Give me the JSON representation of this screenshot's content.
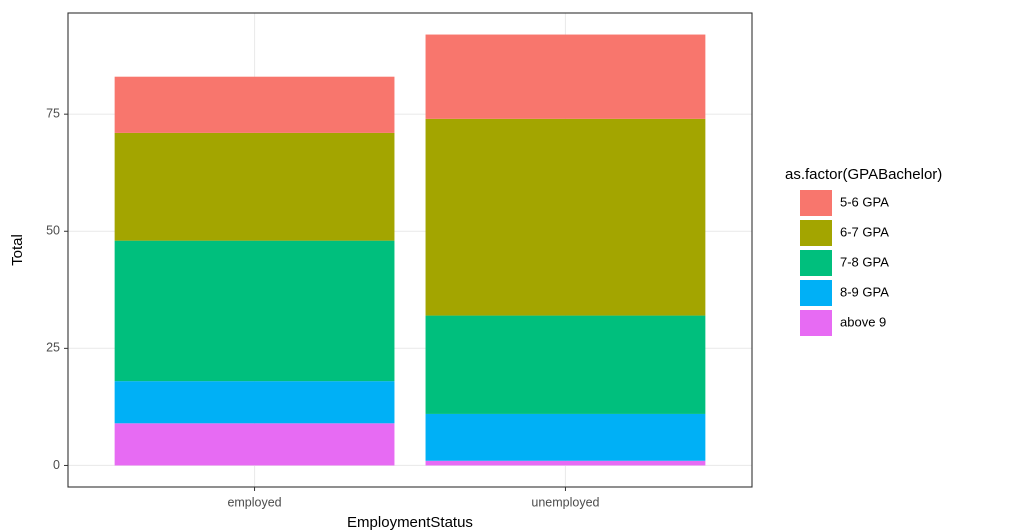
{
  "chart_data": {
    "type": "stacked_bar",
    "x_label": "EmploymentStatus",
    "y_label": "Total",
    "legend_title": "as.factor(GPABachelor)",
    "legend": "right",
    "categories": [
      "employed",
      "unemployed"
    ],
    "series": [
      {
        "name": "5-6 GPA",
        "color": "#f8766d",
        "values": [
          12,
          18
        ]
      },
      {
        "name": "6-7 GPA",
        "color": "#a3a500",
        "values": [
          23,
          42
        ]
      },
      {
        "name": "7-8 GPA",
        "color": "#00bf7d",
        "values": [
          30,
          21
        ]
      },
      {
        "name": "8-9 GPA",
        "color": "#00b0f6",
        "values": [
          9,
          10
        ]
      },
      {
        "name": "above 9",
        "color": "#e76bf3",
        "values": [
          9,
          1
        ]
      }
    ],
    "ylim": [
      -4.6,
      96.6
    ],
    "yticks": [
      0,
      25,
      50,
      75
    ],
    "grid": true
  }
}
